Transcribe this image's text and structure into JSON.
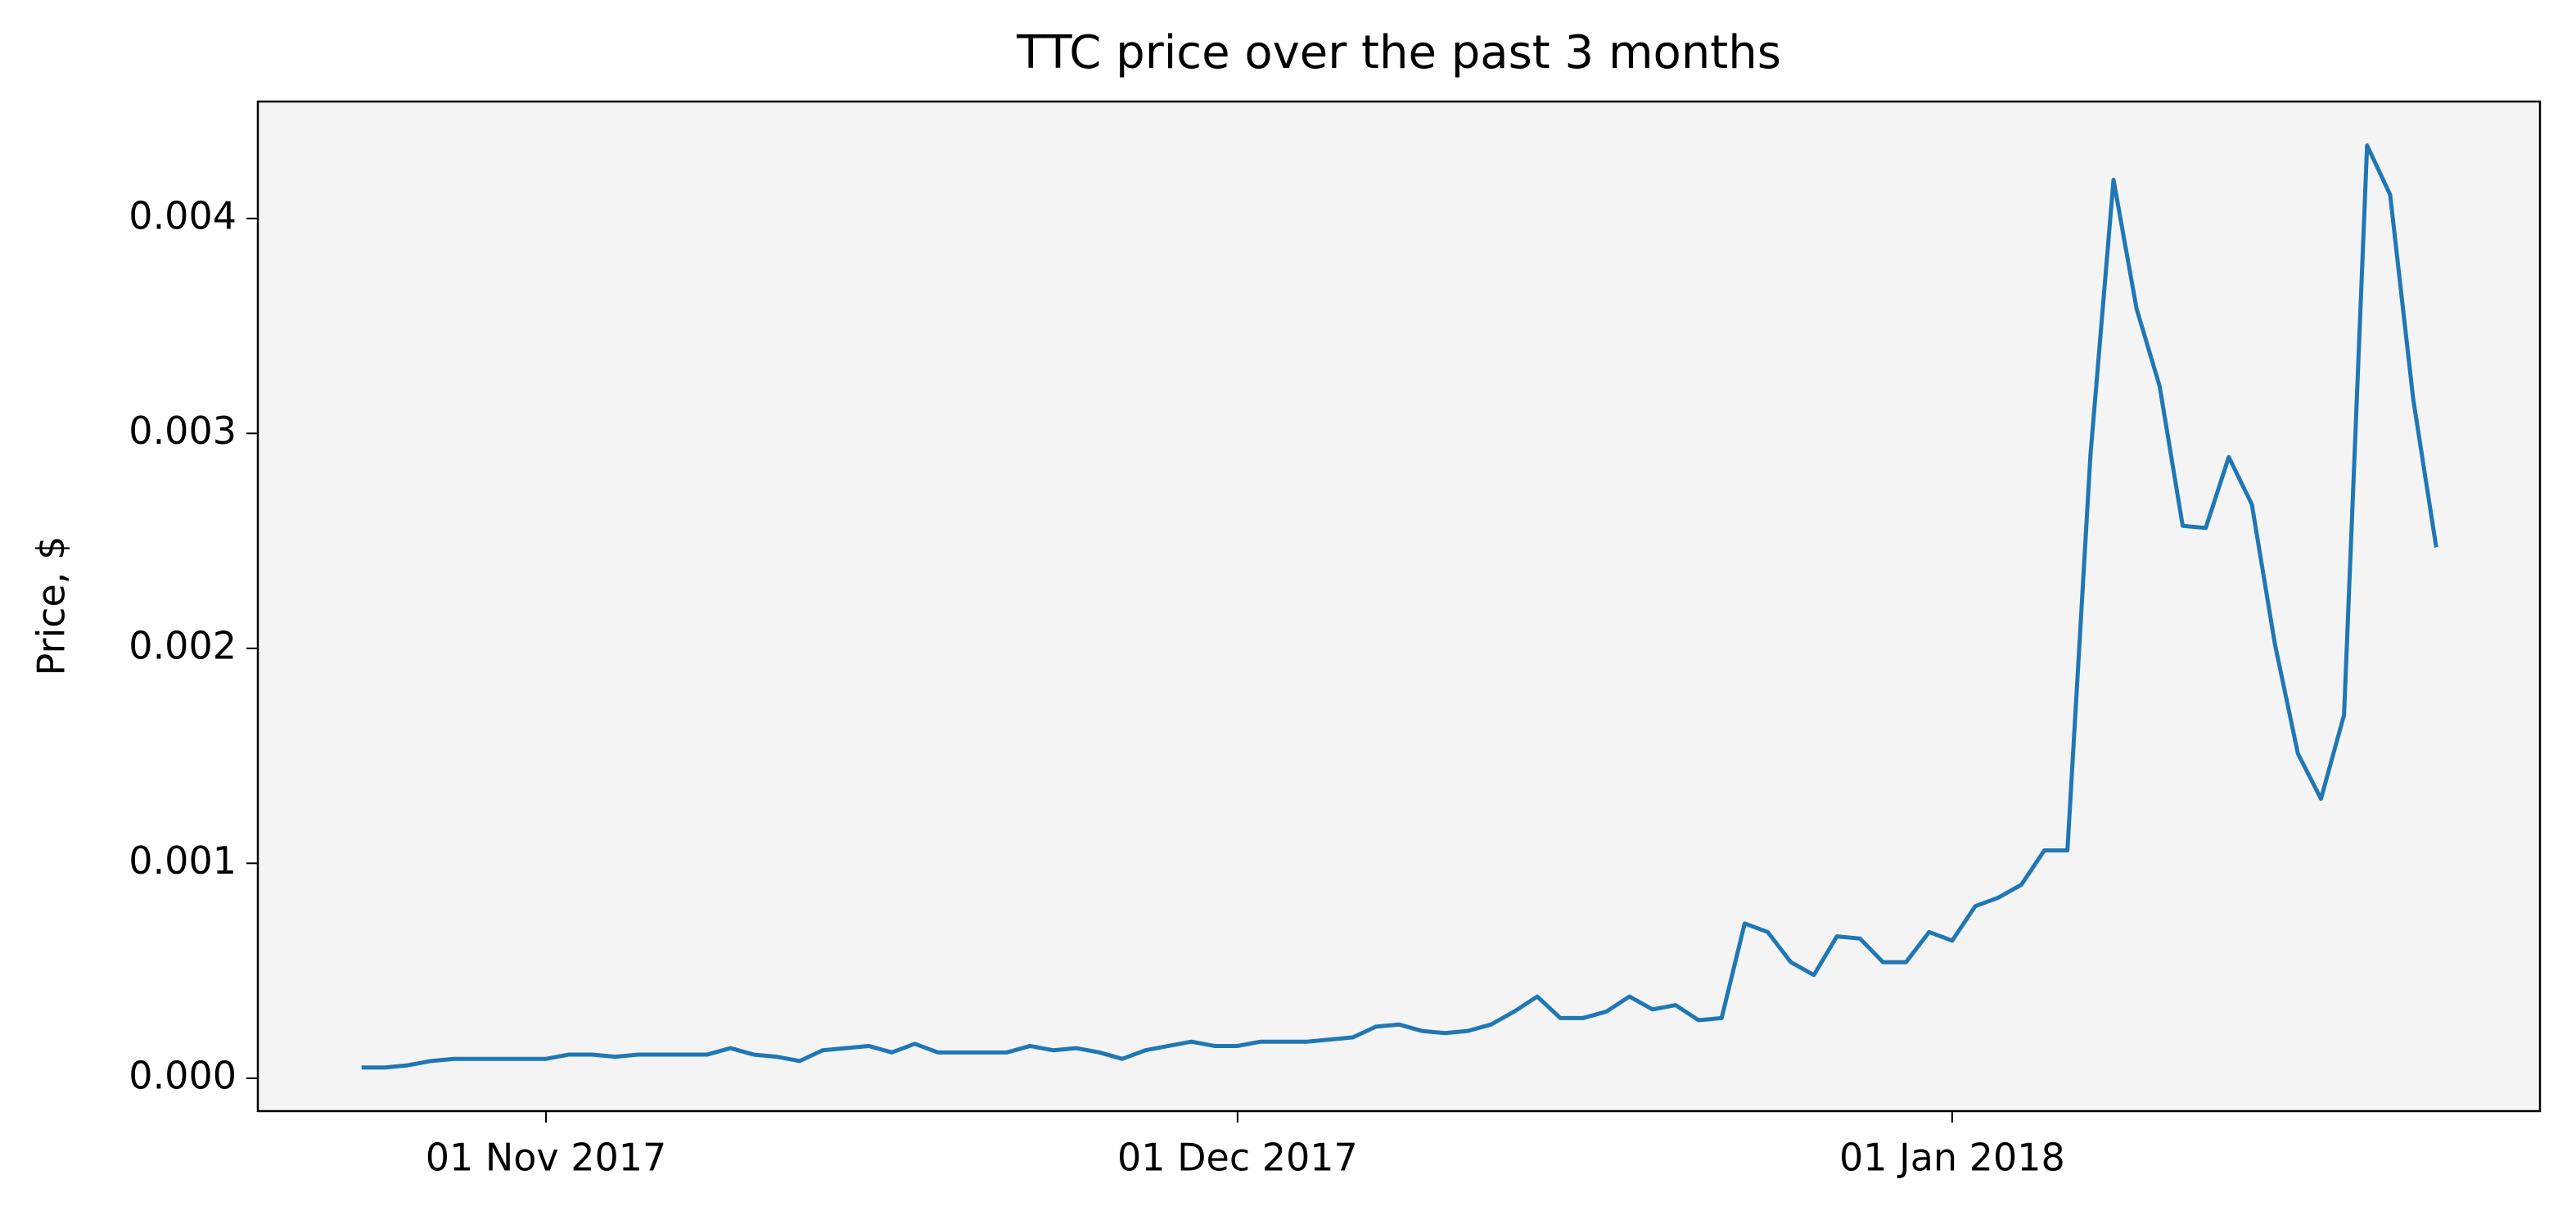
{
  "chart_data": {
    "type": "line",
    "title": "TTC price over the past 3 months",
    "y_label": "Price, $",
    "x": [
      "2017-10-24",
      "2017-10-25",
      "2017-10-26",
      "2017-10-27",
      "2017-10-28",
      "2017-10-29",
      "2017-10-30",
      "2017-10-31",
      "2017-11-01",
      "2017-11-02",
      "2017-11-03",
      "2017-11-04",
      "2017-11-05",
      "2017-11-06",
      "2017-11-07",
      "2017-11-08",
      "2017-11-09",
      "2017-11-10",
      "2017-11-11",
      "2017-11-12",
      "2017-11-13",
      "2017-11-14",
      "2017-11-15",
      "2017-11-16",
      "2017-11-17",
      "2017-11-18",
      "2017-11-19",
      "2017-11-20",
      "2017-11-21",
      "2017-11-22",
      "2017-11-23",
      "2017-11-24",
      "2017-11-25",
      "2017-11-26",
      "2017-11-27",
      "2017-11-28",
      "2017-11-29",
      "2017-11-30",
      "2017-12-01",
      "2017-12-02",
      "2017-12-03",
      "2017-12-04",
      "2017-12-05",
      "2017-12-06",
      "2017-12-07",
      "2017-12-08",
      "2017-12-09",
      "2017-12-10",
      "2017-12-11",
      "2017-12-12",
      "2017-12-13",
      "2017-12-14",
      "2017-12-15",
      "2017-12-16",
      "2017-12-17",
      "2017-12-18",
      "2017-12-19",
      "2017-12-20",
      "2017-12-21",
      "2017-12-22",
      "2017-12-23",
      "2017-12-24",
      "2017-12-25",
      "2017-12-26",
      "2017-12-27",
      "2017-12-28",
      "2017-12-29",
      "2017-12-30",
      "2017-12-31",
      "2018-01-01",
      "2018-01-02",
      "2018-01-03",
      "2018-01-04",
      "2018-01-05",
      "2018-01-06",
      "2018-01-07",
      "2018-01-08",
      "2018-01-09",
      "2018-01-10",
      "2018-01-11",
      "2018-01-12",
      "2018-01-13",
      "2018-01-14",
      "2018-01-15",
      "2018-01-16",
      "2018-01-17",
      "2018-01-18",
      "2018-01-19",
      "2018-01-20",
      "2018-01-21",
      "2018-01-22"
    ],
    "values": [
      5e-05,
      5e-05,
      6e-05,
      8e-05,
      9e-05,
      9e-05,
      9e-05,
      9e-05,
      9e-05,
      0.00011,
      0.00011,
      0.0001,
      0.00011,
      0.00011,
      0.00011,
      0.00011,
      0.00014,
      0.00011,
      0.0001,
      8e-05,
      0.00013,
      0.00014,
      0.00015,
      0.00012,
      0.00016,
      0.00012,
      0.00012,
      0.00012,
      0.00012,
      0.00015,
      0.00013,
      0.00014,
      0.00012,
      9e-05,
      0.00013,
      0.00015,
      0.00017,
      0.00015,
      0.00015,
      0.00017,
      0.00017,
      0.00017,
      0.00018,
      0.00019,
      0.00024,
      0.00025,
      0.00022,
      0.00021,
      0.00022,
      0.00025,
      0.00031,
      0.00038,
      0.00028,
      0.00028,
      0.00031,
      0.00038,
      0.00032,
      0.00034,
      0.00027,
      0.00028,
      0.00072,
      0.00068,
      0.00054,
      0.00048,
      0.00066,
      0.00065,
      0.00054,
      0.00054,
      0.00068,
      0.00064,
      0.0008,
      0.00084,
      0.0009,
      0.00106,
      0.00106,
      0.0029,
      0.00418,
      0.00358,
      0.00322,
      0.00257,
      0.00256,
      0.00289,
      0.00267,
      0.00202,
      0.00151,
      0.0013,
      0.00169,
      0.00434,
      0.00411,
      0.00316,
      0.00247
    ],
    "color": "#1f77b4",
    "xlim": [
      "2017-10-19T12:00",
      "2018-01-26T12:00"
    ],
    "xticks": [
      {
        "value": "2017-11-01",
        "label": "01 Nov 2017"
      },
      {
        "value": "2017-12-01",
        "label": "01 Dec 2017"
      },
      {
        "value": "2018-01-01",
        "label": "01 Jan 2018"
      }
    ],
    "ylim": [
      -0.000153,
      0.004544
    ],
    "yticks": [
      {
        "value": 0,
        "label": "0.000"
      },
      {
        "value": 0.001,
        "label": "0.001"
      },
      {
        "value": 0.002,
        "label": "0.002"
      },
      {
        "value": 0.003,
        "label": "0.003"
      },
      {
        "value": 0.004,
        "label": "0.004"
      }
    ],
    "grid": false
  }
}
